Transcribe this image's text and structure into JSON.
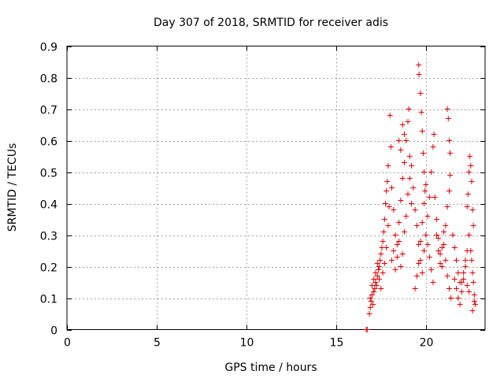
{
  "chart_data": {
    "type": "scatter",
    "title": "Day 307 of 2018, SRMTID for receiver adis",
    "xlabel": "GPS time / hours",
    "ylabel": "SRMTID / TECUs",
    "xlim": [
      0,
      23.3
    ],
    "ylim": [
      0,
      0.9
    ],
    "xticks": [
      0,
      5,
      10,
      15,
      20
    ],
    "xtick_labels": [
      "0",
      "5",
      "10",
      "15",
      "20"
    ],
    "yticks": [
      0,
      0.1,
      0.2,
      0.3,
      0.4,
      0.5,
      0.6,
      0.7,
      0.8,
      0.9
    ],
    "ytick_labels": [
      "0",
      "0.1",
      "0.2",
      "0.3",
      "0.4",
      "0.5",
      "0.6",
      "0.7",
      "0.8",
      "0.9"
    ],
    "grid": true,
    "marker": "+",
    "color": "#e00000",
    "series": [
      {
        "name": "SRMTID",
        "points": [
          [
            16.68,
            0.0
          ],
          [
            16.73,
            0.0
          ],
          [
            16.85,
            0.05
          ],
          [
            16.9,
            0.07
          ],
          [
            16.95,
            0.09
          ],
          [
            17.0,
            0.11
          ],
          [
            17.05,
            0.08
          ],
          [
            17.1,
            0.12
          ],
          [
            17.15,
            0.13
          ],
          [
            17.2,
            0.15
          ],
          [
            17.25,
            0.14
          ],
          [
            17.3,
            0.17
          ],
          [
            17.35,
            0.19
          ],
          [
            17.4,
            0.2
          ],
          [
            17.45,
            0.22
          ],
          [
            17.5,
            0.24
          ],
          [
            17.55,
            0.26
          ],
          [
            17.6,
            0.28
          ],
          [
            17.65,
            0.31
          ],
          [
            17.7,
            0.35
          ],
          [
            17.75,
            0.4
          ],
          [
            17.8,
            0.44
          ],
          [
            17.85,
            0.47
          ],
          [
            17.9,
            0.52
          ],
          [
            16.9,
            0.1
          ],
          [
            17.0,
            0.14
          ],
          [
            17.1,
            0.16
          ],
          [
            17.2,
            0.18
          ],
          [
            17.3,
            0.21
          ],
          [
            17.4,
            0.16
          ],
          [
            17.5,
            0.13
          ],
          [
            17.6,
            0.18
          ],
          [
            17.7,
            0.21
          ],
          [
            17.8,
            0.26
          ],
          [
            17.9,
            0.33
          ],
          [
            17.95,
            0.39
          ],
          [
            18.0,
            0.68
          ],
          [
            18.05,
            0.58
          ],
          [
            18.1,
            0.45
          ],
          [
            18.2,
            0.38
          ],
          [
            18.3,
            0.3
          ],
          [
            18.4,
            0.27
          ],
          [
            18.5,
            0.34
          ],
          [
            18.6,
            0.41
          ],
          [
            18.7,
            0.48
          ],
          [
            18.8,
            0.53
          ],
          [
            18.9,
            0.6
          ],
          [
            19.0,
            0.66
          ],
          [
            19.05,
            0.7
          ],
          [
            18.1,
            0.22
          ],
          [
            18.2,
            0.25
          ],
          [
            18.3,
            0.19
          ],
          [
            18.4,
            0.23
          ],
          [
            18.5,
            0.28
          ],
          [
            18.6,
            0.2
          ],
          [
            18.7,
            0.24
          ],
          [
            18.8,
            0.31
          ],
          [
            18.9,
            0.36
          ],
          [
            19.0,
            0.43
          ],
          [
            19.1,
            0.48
          ],
          [
            19.2,
            0.4
          ],
          [
            18.5,
            0.6
          ],
          [
            18.6,
            0.57
          ],
          [
            18.7,
            0.65
          ],
          [
            18.8,
            0.62
          ],
          [
            19.1,
            0.55
          ],
          [
            19.2,
            0.52
          ],
          [
            19.3,
            0.45
          ],
          [
            19.4,
            0.38
          ],
          [
            19.5,
            0.33
          ],
          [
            19.6,
            0.27
          ],
          [
            19.7,
            0.22
          ],
          [
            19.8,
            0.18
          ],
          [
            19.9,
            0.25
          ],
          [
            20.0,
            0.3
          ],
          [
            20.1,
            0.36
          ],
          [
            20.2,
            0.42
          ],
          [
            20.3,
            0.5
          ],
          [
            20.4,
            0.58
          ],
          [
            20.45,
            0.62
          ],
          [
            19.6,
            0.84
          ],
          [
            19.62,
            0.81
          ],
          [
            19.7,
            0.75
          ],
          [
            19.75,
            0.69
          ],
          [
            19.8,
            0.63
          ],
          [
            19.85,
            0.56
          ],
          [
            19.9,
            0.5
          ],
          [
            19.95,
            0.44
          ],
          [
            19.4,
            0.13
          ],
          [
            19.5,
            0.17
          ],
          [
            19.6,
            0.21
          ],
          [
            19.7,
            0.28
          ],
          [
            19.8,
            0.34
          ],
          [
            19.9,
            0.4
          ],
          [
            20.0,
            0.46
          ],
          [
            20.1,
            0.27
          ],
          [
            20.2,
            0.23
          ],
          [
            20.3,
            0.19
          ],
          [
            20.4,
            0.15
          ],
          [
            20.5,
            0.42
          ],
          [
            20.6,
            0.35
          ],
          [
            20.7,
            0.29
          ],
          [
            20.8,
            0.24
          ],
          [
            20.9,
            0.2
          ],
          [
            21.0,
            0.27
          ],
          [
            21.1,
            0.33
          ],
          [
            21.2,
            0.39
          ],
          [
            21.3,
            0.44
          ],
          [
            21.35,
            0.49
          ],
          [
            20.6,
            0.3
          ],
          [
            20.7,
            0.25
          ],
          [
            20.8,
            0.21
          ],
          [
            20.9,
            0.26
          ],
          [
            21.0,
            0.31
          ],
          [
            21.1,
            0.22
          ],
          [
            21.2,
            0.17
          ],
          [
            21.3,
            0.13
          ],
          [
            21.4,
            0.1
          ],
          [
            21.2,
            0.7
          ],
          [
            21.25,
            0.67
          ],
          [
            21.3,
            0.6
          ],
          [
            21.35,
            0.56
          ],
          [
            21.5,
            0.3
          ],
          [
            21.6,
            0.26
          ],
          [
            21.7,
            0.22
          ],
          [
            21.8,
            0.18
          ],
          [
            21.9,
            0.15
          ],
          [
            22.0,
            0.12
          ],
          [
            22.1,
            0.16
          ],
          [
            22.2,
            0.2
          ],
          [
            22.3,
            0.25
          ],
          [
            22.4,
            0.3
          ],
          [
            21.6,
            0.16
          ],
          [
            21.7,
            0.13
          ],
          [
            21.8,
            0.1
          ],
          [
            21.9,
            0.08
          ],
          [
            22.0,
            0.15
          ],
          [
            22.1,
            0.18
          ],
          [
            22.2,
            0.22
          ],
          [
            22.3,
            0.14
          ],
          [
            22.4,
            0.12
          ],
          [
            22.3,
            0.39
          ],
          [
            22.35,
            0.43
          ],
          [
            22.4,
            0.5
          ],
          [
            22.45,
            0.55
          ],
          [
            22.5,
            0.52
          ],
          [
            22.55,
            0.47
          ],
          [
            22.6,
            0.38
          ],
          [
            22.65,
            0.33
          ],
          [
            22.5,
            0.25
          ],
          [
            22.55,
            0.22
          ],
          [
            22.6,
            0.18
          ],
          [
            22.65,
            0.15
          ],
          [
            22.7,
            0.11
          ],
          [
            22.75,
            0.08
          ],
          [
            22.6,
            0.06
          ],
          [
            22.7,
            0.09
          ]
        ]
      }
    ]
  }
}
